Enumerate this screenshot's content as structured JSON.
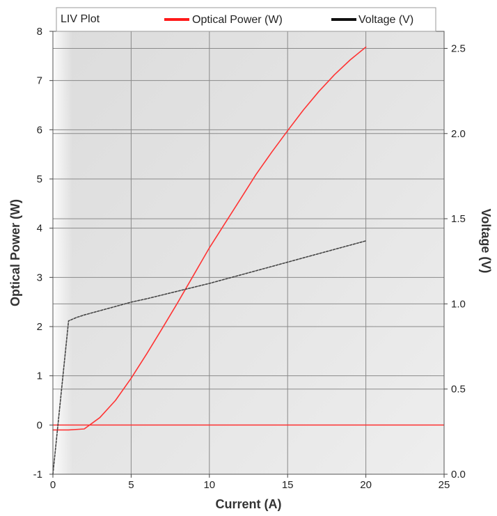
{
  "chart_data": {
    "type": "line",
    "title": "LIV Plot",
    "xlabel": "Current (A)",
    "ylabel_left": "Optical Power (W)",
    "ylabel_right": "Voltage (V)",
    "xlim": [
      0,
      25
    ],
    "ylim_left": [
      -1,
      8
    ],
    "ylim_right": [
      0.0,
      2.6
    ],
    "x_ticks": [
      0,
      5,
      10,
      15,
      20,
      25
    ],
    "y_left_ticks": [
      -1,
      0,
      1,
      2,
      3,
      4,
      5,
      6,
      7,
      8
    ],
    "y_right_ticks": [
      0.0,
      0.5,
      1.0,
      1.5,
      2.0,
      2.5
    ],
    "x_tick_labels": [
      "0",
      "5",
      "10",
      "15",
      "20",
      "25"
    ],
    "y_left_tick_labels": [
      "-1",
      "0",
      "1",
      "2",
      "3",
      "4",
      "5",
      "6",
      "7",
      "8"
    ],
    "y_right_tick_labels": [
      "0.0",
      "0.5",
      "1.0",
      "1.5",
      "2.0",
      "2.5"
    ],
    "grid": true,
    "legend_position": "top",
    "series": [
      {
        "name": "Optical Power (W)",
        "axis": "left",
        "color": "#ff3333",
        "style": "solid",
        "x": [
          0,
          1,
          2,
          3,
          4,
          5,
          6,
          7,
          8,
          9,
          10,
          11,
          12,
          13,
          14,
          15,
          16,
          17,
          18,
          19,
          20
        ],
        "y": [
          -0.1,
          -0.1,
          -0.08,
          0.15,
          0.5,
          0.95,
          1.45,
          1.97,
          2.5,
          3.05,
          3.6,
          4.1,
          4.6,
          5.1,
          5.55,
          5.98,
          6.4,
          6.78,
          7.12,
          7.42,
          7.68
        ]
      },
      {
        "name": "Voltage (V)",
        "axis": "right",
        "color": "#444444",
        "style": "dashed",
        "x": [
          0,
          1,
          1.5,
          2,
          3,
          4,
          5,
          6,
          8,
          10,
          12,
          14,
          16,
          18,
          20
        ],
        "y": [
          0.0,
          0.9,
          0.92,
          0.935,
          0.96,
          0.985,
          1.01,
          1.03,
          1.075,
          1.12,
          1.17,
          1.22,
          1.27,
          1.32,
          1.37
        ]
      }
    ]
  }
}
